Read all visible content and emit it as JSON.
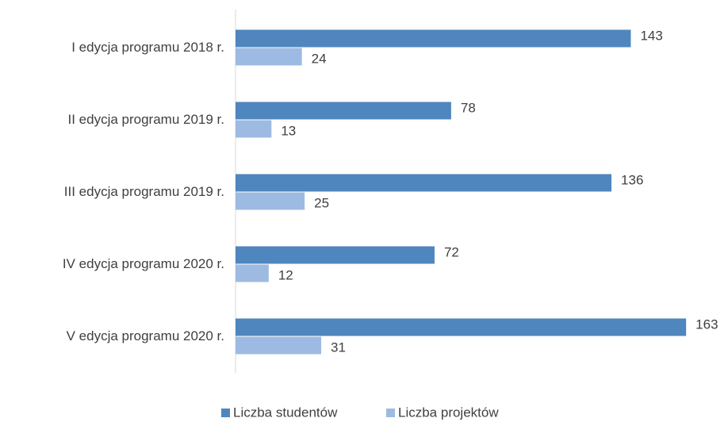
{
  "chart_data": {
    "type": "hbar",
    "categories": [
      "I edycja programu 2018 r.",
      "II edycja programu 2019 r.",
      "III edycja programu 2019 r.",
      "IV edycja programu 2020 r.",
      "V edycja programu 2020 r."
    ],
    "series": [
      {
        "name": "Liczba studentów",
        "color": "#4f86be",
        "values": [
          143,
          78,
          136,
          72,
          163
        ]
      },
      {
        "name": "Liczba projektów",
        "color": "#9dbbe2",
        "values": [
          24,
          13,
          25,
          12,
          31
        ]
      }
    ],
    "xlim": [
      0,
      175
    ],
    "legend": "bottom"
  }
}
